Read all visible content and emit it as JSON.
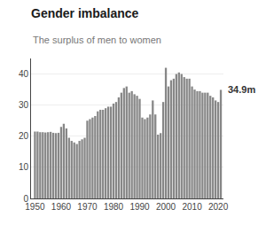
{
  "chart_data": {
    "type": "bar",
    "title": "Gender imbalance",
    "subtitle": "The surplus of men to women",
    "annotation": "34.9m",
    "color": "#878787",
    "x": [
      1950,
      1951,
      1952,
      1953,
      1954,
      1955,
      1956,
      1957,
      1958,
      1959,
      1960,
      1961,
      1962,
      1963,
      1964,
      1965,
      1966,
      1967,
      1968,
      1969,
      1970,
      1971,
      1972,
      1973,
      1974,
      1975,
      1976,
      1977,
      1978,
      1979,
      1980,
      1981,
      1982,
      1983,
      1984,
      1985,
      1986,
      1987,
      1988,
      1989,
      1990,
      1991,
      1992,
      1993,
      1994,
      1995,
      1996,
      1997,
      1998,
      1999,
      2000,
      2001,
      2002,
      2003,
      2004,
      2005,
      2006,
      2007,
      2008,
      2009,
      2010,
      2011,
      2012,
      2013,
      2014,
      2015,
      2016,
      2017,
      2018,
      2019,
      2020,
      2021
    ],
    "values": [
      21.5,
      21.5,
      21.3,
      21.3,
      21.2,
      21.3,
      21.4,
      21.1,
      21.0,
      21.1,
      23.0,
      24.0,
      22.5,
      19.5,
      18.5,
      18.0,
      17.5,
      18.5,
      19.0,
      19.5,
      25.0,
      25.5,
      26.0,
      26.5,
      28.0,
      28.5,
      28.5,
      29.0,
      29.5,
      29.5,
      30.5,
      31.0,
      32.5,
      34.0,
      35.5,
      36.0,
      34.0,
      34.5,
      33.5,
      33.0,
      32.0,
      26.0,
      25.5,
      26.0,
      27.0,
      31.5,
      27.0,
      20.5,
      21.0,
      31.0,
      42.0,
      36.0,
      38.0,
      38.5,
      40.0,
      40.5,
      40.0,
      39.0,
      38.5,
      38.5,
      36.0,
      35.0,
      34.5,
      34.5,
      34.0,
      34.0,
      34.0,
      33.0,
      32.5,
      31.5,
      31.0,
      34.9
    ],
    "xlim": [
      1948.5,
      2022.0
    ],
    "ylim": [
      0,
      45
    ],
    "xticks": [
      1950,
      1960,
      1970,
      1980,
      1990,
      2000,
      2010,
      2020
    ],
    "yticks": [
      0,
      10,
      20,
      30,
      40
    ],
    "grid": true
  }
}
